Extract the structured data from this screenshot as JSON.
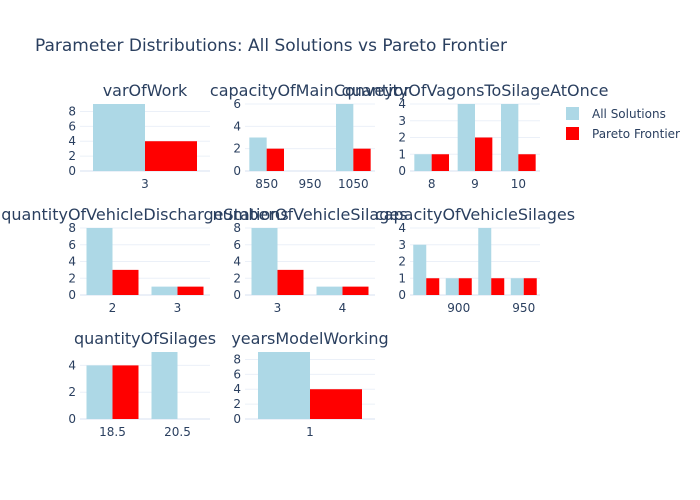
{
  "figure": {
    "title": "Parameter Distributions: All Solutions vs Pareto Frontier"
  },
  "legend": {
    "position": "top-right",
    "items": [
      {
        "name": "All Solutions",
        "color": "#add8e6"
      },
      {
        "name": "Pareto Frontier",
        "color": "#ff0000"
      }
    ]
  },
  "colors": {
    "all": "#add8e6",
    "pareto": "#ff0000"
  },
  "chart_data": [
    {
      "type": "bar",
      "title": "varOfWork",
      "categories": [
        "3"
      ],
      "series": [
        {
          "name": "All Solutions",
          "values": [
            9
          ]
        },
        {
          "name": "Pareto Frontier",
          "values": [
            4
          ]
        }
      ],
      "ylim": [
        0,
        9
      ],
      "yticks": [
        0,
        2,
        4,
        6,
        8
      ]
    },
    {
      "type": "bar",
      "title": "capacityOfMainConveyor",
      "categories": [
        "850",
        "950",
        "1050"
      ],
      "series": [
        {
          "name": "All Solutions",
          "values": [
            3,
            0,
            6
          ]
        },
        {
          "name": "Pareto Frontier",
          "values": [
            2,
            0,
            2
          ]
        }
      ],
      "ylim": [
        0,
        6
      ],
      "yticks": [
        0,
        2,
        4,
        6
      ]
    },
    {
      "type": "bar",
      "title": "quantityOfVagonsToSilageAtOnce",
      "categories": [
        "8",
        "9",
        "10"
      ],
      "series": [
        {
          "name": "All Solutions",
          "values": [
            1,
            4,
            4
          ]
        },
        {
          "name": "Pareto Frontier",
          "values": [
            1,
            2,
            1
          ]
        }
      ],
      "ylim": [
        0,
        4
      ],
      "yticks": [
        0,
        1,
        2,
        3,
        4
      ]
    },
    {
      "type": "bar",
      "title": "quantityOfVehicleDischargeStations",
      "categories": [
        "2",
        "3"
      ],
      "series": [
        {
          "name": "All Solutions",
          "values": [
            8,
            1
          ]
        },
        {
          "name": "Pareto Frontier",
          "values": [
            3,
            1
          ]
        }
      ],
      "ylim": [
        0,
        8
      ],
      "yticks": [
        0,
        2,
        4,
        6,
        8
      ]
    },
    {
      "type": "bar",
      "title": "numberOfVehicleSilages",
      "categories": [
        "3",
        "4"
      ],
      "series": [
        {
          "name": "All Solutions",
          "values": [
            8,
            1
          ]
        },
        {
          "name": "Pareto Frontier",
          "values": [
            3,
            1
          ]
        }
      ],
      "ylim": [
        0,
        8
      ],
      "yticks": [
        0,
        2,
        4,
        6,
        8
      ]
    },
    {
      "type": "bar",
      "title": "capacityOfVehicleSilages",
      "categories": [
        "",
        "900",
        "",
        "950"
      ],
      "series": [
        {
          "name": "All Solutions",
          "values": [
            3,
            1,
            4,
            1
          ]
        },
        {
          "name": "Pareto Frontier",
          "values": [
            1,
            1,
            1,
            1
          ]
        }
      ],
      "ylim": [
        0,
        4
      ],
      "yticks": [
        0,
        1,
        2,
        3,
        4
      ]
    },
    {
      "type": "bar",
      "title": "quantityOfSilages",
      "categories": [
        "18.5",
        "20.5"
      ],
      "series": [
        {
          "name": "All Solutions",
          "values": [
            4,
            5
          ]
        },
        {
          "name": "Pareto Frontier",
          "values": [
            4,
            0
          ]
        }
      ],
      "ylim": [
        0,
        5
      ],
      "yticks": [
        0,
        2,
        4
      ]
    },
    {
      "type": "bar",
      "title": "yearsModelWorking",
      "categories": [
        "1"
      ],
      "series": [
        {
          "name": "All Solutions",
          "values": [
            9
          ]
        },
        {
          "name": "Pareto Frontier",
          "values": [
            4
          ]
        }
      ],
      "ylim": [
        0,
        9
      ],
      "yticks": [
        0,
        2,
        4,
        6,
        8
      ]
    }
  ]
}
